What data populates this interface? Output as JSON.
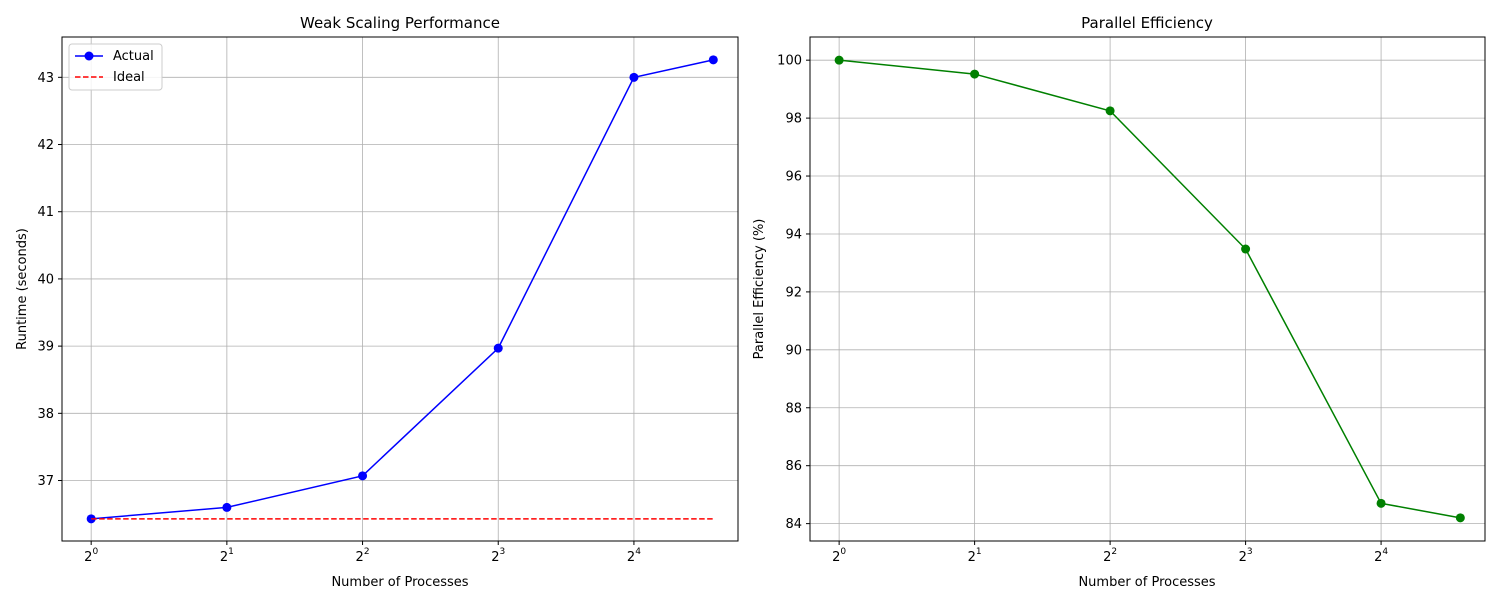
{
  "chart_data": [
    {
      "type": "line",
      "title": "Weak Scaling Performance",
      "xlabel": "Number of Processes",
      "ylabel": "Runtime (seconds)",
      "xscale": "log2",
      "x": [
        1,
        2,
        4,
        8,
        16,
        24
      ],
      "xticks": [
        {
          "base": "2",
          "exp": "0"
        },
        {
          "base": "2",
          "exp": "1"
        },
        {
          "base": "2",
          "exp": "2"
        },
        {
          "base": "2",
          "exp": "3"
        },
        {
          "base": "2",
          "exp": "4"
        }
      ],
      "yticks": [
        "37",
        "38",
        "39",
        "40",
        "41",
        "42",
        "43"
      ],
      "ylim": [
        36.1,
        43.6
      ],
      "grid": true,
      "legend": "top-left",
      "series": [
        {
          "name": "Actual",
          "color": "#0000ff",
          "style": "solid",
          "marker": "circle",
          "values": [
            36.43,
            36.6,
            37.07,
            38.97,
            43.0,
            43.26
          ]
        },
        {
          "name": "Ideal",
          "color": "#ff0000",
          "style": "dashed",
          "marker": "none",
          "values": [
            36.43,
            36.43,
            36.43,
            36.43,
            36.43,
            36.43
          ]
        }
      ]
    },
    {
      "type": "line",
      "title": "Parallel Efficiency",
      "xlabel": "Number of Processes",
      "ylabel": "Parallel Efficiency (%)",
      "xscale": "log2",
      "x": [
        1,
        2,
        4,
        8,
        16,
        24
      ],
      "xticks": [
        {
          "base": "2",
          "exp": "0"
        },
        {
          "base": "2",
          "exp": "1"
        },
        {
          "base": "2",
          "exp": "2"
        },
        {
          "base": "2",
          "exp": "3"
        },
        {
          "base": "2",
          "exp": "4"
        }
      ],
      "yticks": [
        "84",
        "86",
        "88",
        "90",
        "92",
        "94",
        "96",
        "98",
        "100"
      ],
      "ylim": [
        83.4,
        100.8
      ],
      "grid": true,
      "series": [
        {
          "color": "#008000",
          "style": "solid",
          "marker": "circle",
          "values": [
            100.0,
            99.52,
            98.25,
            93.48,
            84.7,
            84.2
          ]
        }
      ]
    }
  ]
}
